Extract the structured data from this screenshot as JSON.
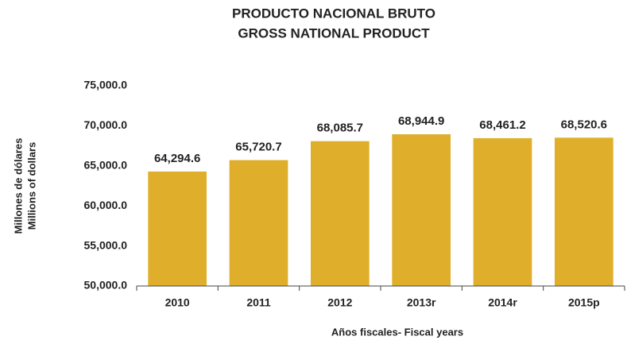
{
  "chart_data": {
    "type": "bar",
    "title": [
      "PRODUCTO NACIONAL BRUTO",
      "GROSS NATIONAL PRODUCT"
    ],
    "ylabel": [
      "Millones de dólares",
      "Millions of dollars"
    ],
    "xlabel": "Años fiscales- Fiscal years",
    "categories": [
      "2010",
      "2011",
      "2012",
      "2013r",
      "2014r",
      "2015p"
    ],
    "values": [
      64294.6,
      65720.7,
      68085.7,
      68944.9,
      68461.2,
      68520.6
    ],
    "value_labels": [
      "64,294.6",
      "65,720.7",
      "68,085.7",
      "68,944.9",
      "68,461.2",
      "68,520.6"
    ],
    "color": "#dfae2a",
    "ylim": [
      50000,
      75000
    ],
    "yticks": [
      {
        "value": 50000,
        "label": "50,000.0"
      },
      {
        "value": 55000,
        "label": "55,000.0"
      },
      {
        "value": 60000,
        "label": "60,000.0"
      },
      {
        "value": 65000,
        "label": "65,000.0"
      },
      {
        "value": 70000,
        "label": "70,000.0"
      },
      {
        "value": 75000,
        "label": "75,000.0"
      }
    ],
    "grid": false
  }
}
